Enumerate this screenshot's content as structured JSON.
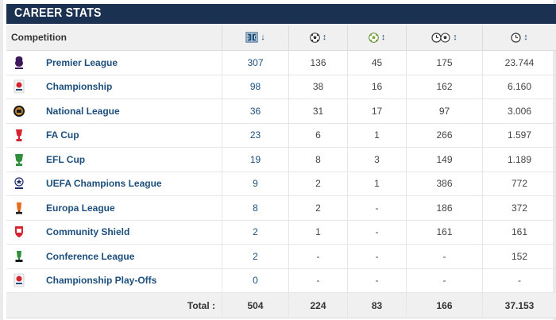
{
  "header": {
    "title": "CAREER STATS"
  },
  "columns": {
    "competition": "Competition",
    "icons": [
      "appearances-icon",
      "goals-icon",
      "assists-icon",
      "minutes-per-goal-icon",
      "minutes-played-icon"
    ],
    "sort_glyphs": [
      "↓",
      "↕",
      "↕",
      "↕",
      "↕"
    ]
  },
  "rows": [
    {
      "name": "Premier League",
      "logo": "premier-league-logo",
      "apps": "307",
      "goals": "136",
      "assists": "45",
      "mpg": "175",
      "minutes": "23.744"
    },
    {
      "name": "Championship",
      "logo": "championship-logo",
      "apps": "98",
      "goals": "38",
      "assists": "16",
      "mpg": "162",
      "minutes": "6.160"
    },
    {
      "name": "National League",
      "logo": "national-league-logo",
      "apps": "36",
      "goals": "31",
      "assists": "17",
      "mpg": "97",
      "minutes": "3.006"
    },
    {
      "name": "FA Cup",
      "logo": "fa-cup-logo",
      "apps": "23",
      "goals": "6",
      "assists": "1",
      "mpg": "266",
      "minutes": "1.597"
    },
    {
      "name": "EFL Cup",
      "logo": "efl-cup-logo",
      "apps": "19",
      "goals": "8",
      "assists": "3",
      "mpg": "149",
      "minutes": "1.189"
    },
    {
      "name": "UEFA Champions League",
      "logo": "champions-league-logo",
      "apps": "9",
      "goals": "2",
      "assists": "1",
      "mpg": "386",
      "minutes": "772"
    },
    {
      "name": "Europa League",
      "logo": "europa-league-logo",
      "apps": "8",
      "goals": "2",
      "assists": "-",
      "mpg": "186",
      "minutes": "372"
    },
    {
      "name": "Community Shield",
      "logo": "community-shield-logo",
      "apps": "2",
      "goals": "1",
      "assists": "-",
      "mpg": "161",
      "minutes": "161"
    },
    {
      "name": "Conference League",
      "logo": "conference-league-logo",
      "apps": "2",
      "goals": "-",
      "assists": "-",
      "mpg": "-",
      "minutes": "152"
    },
    {
      "name": "Championship Play-Offs",
      "logo": "playoffs-logo",
      "apps": "0",
      "goals": "-",
      "assists": "-",
      "mpg": "-",
      "minutes": "-"
    }
  ],
  "total": {
    "label": "Total :",
    "apps": "504",
    "goals": "224",
    "assists": "83",
    "mpg": "166",
    "minutes": "37.153"
  },
  "colors": {
    "header_bg": "#1a3151",
    "link": "#1d4f7c",
    "head_bg": "#f0f0f0"
  }
}
